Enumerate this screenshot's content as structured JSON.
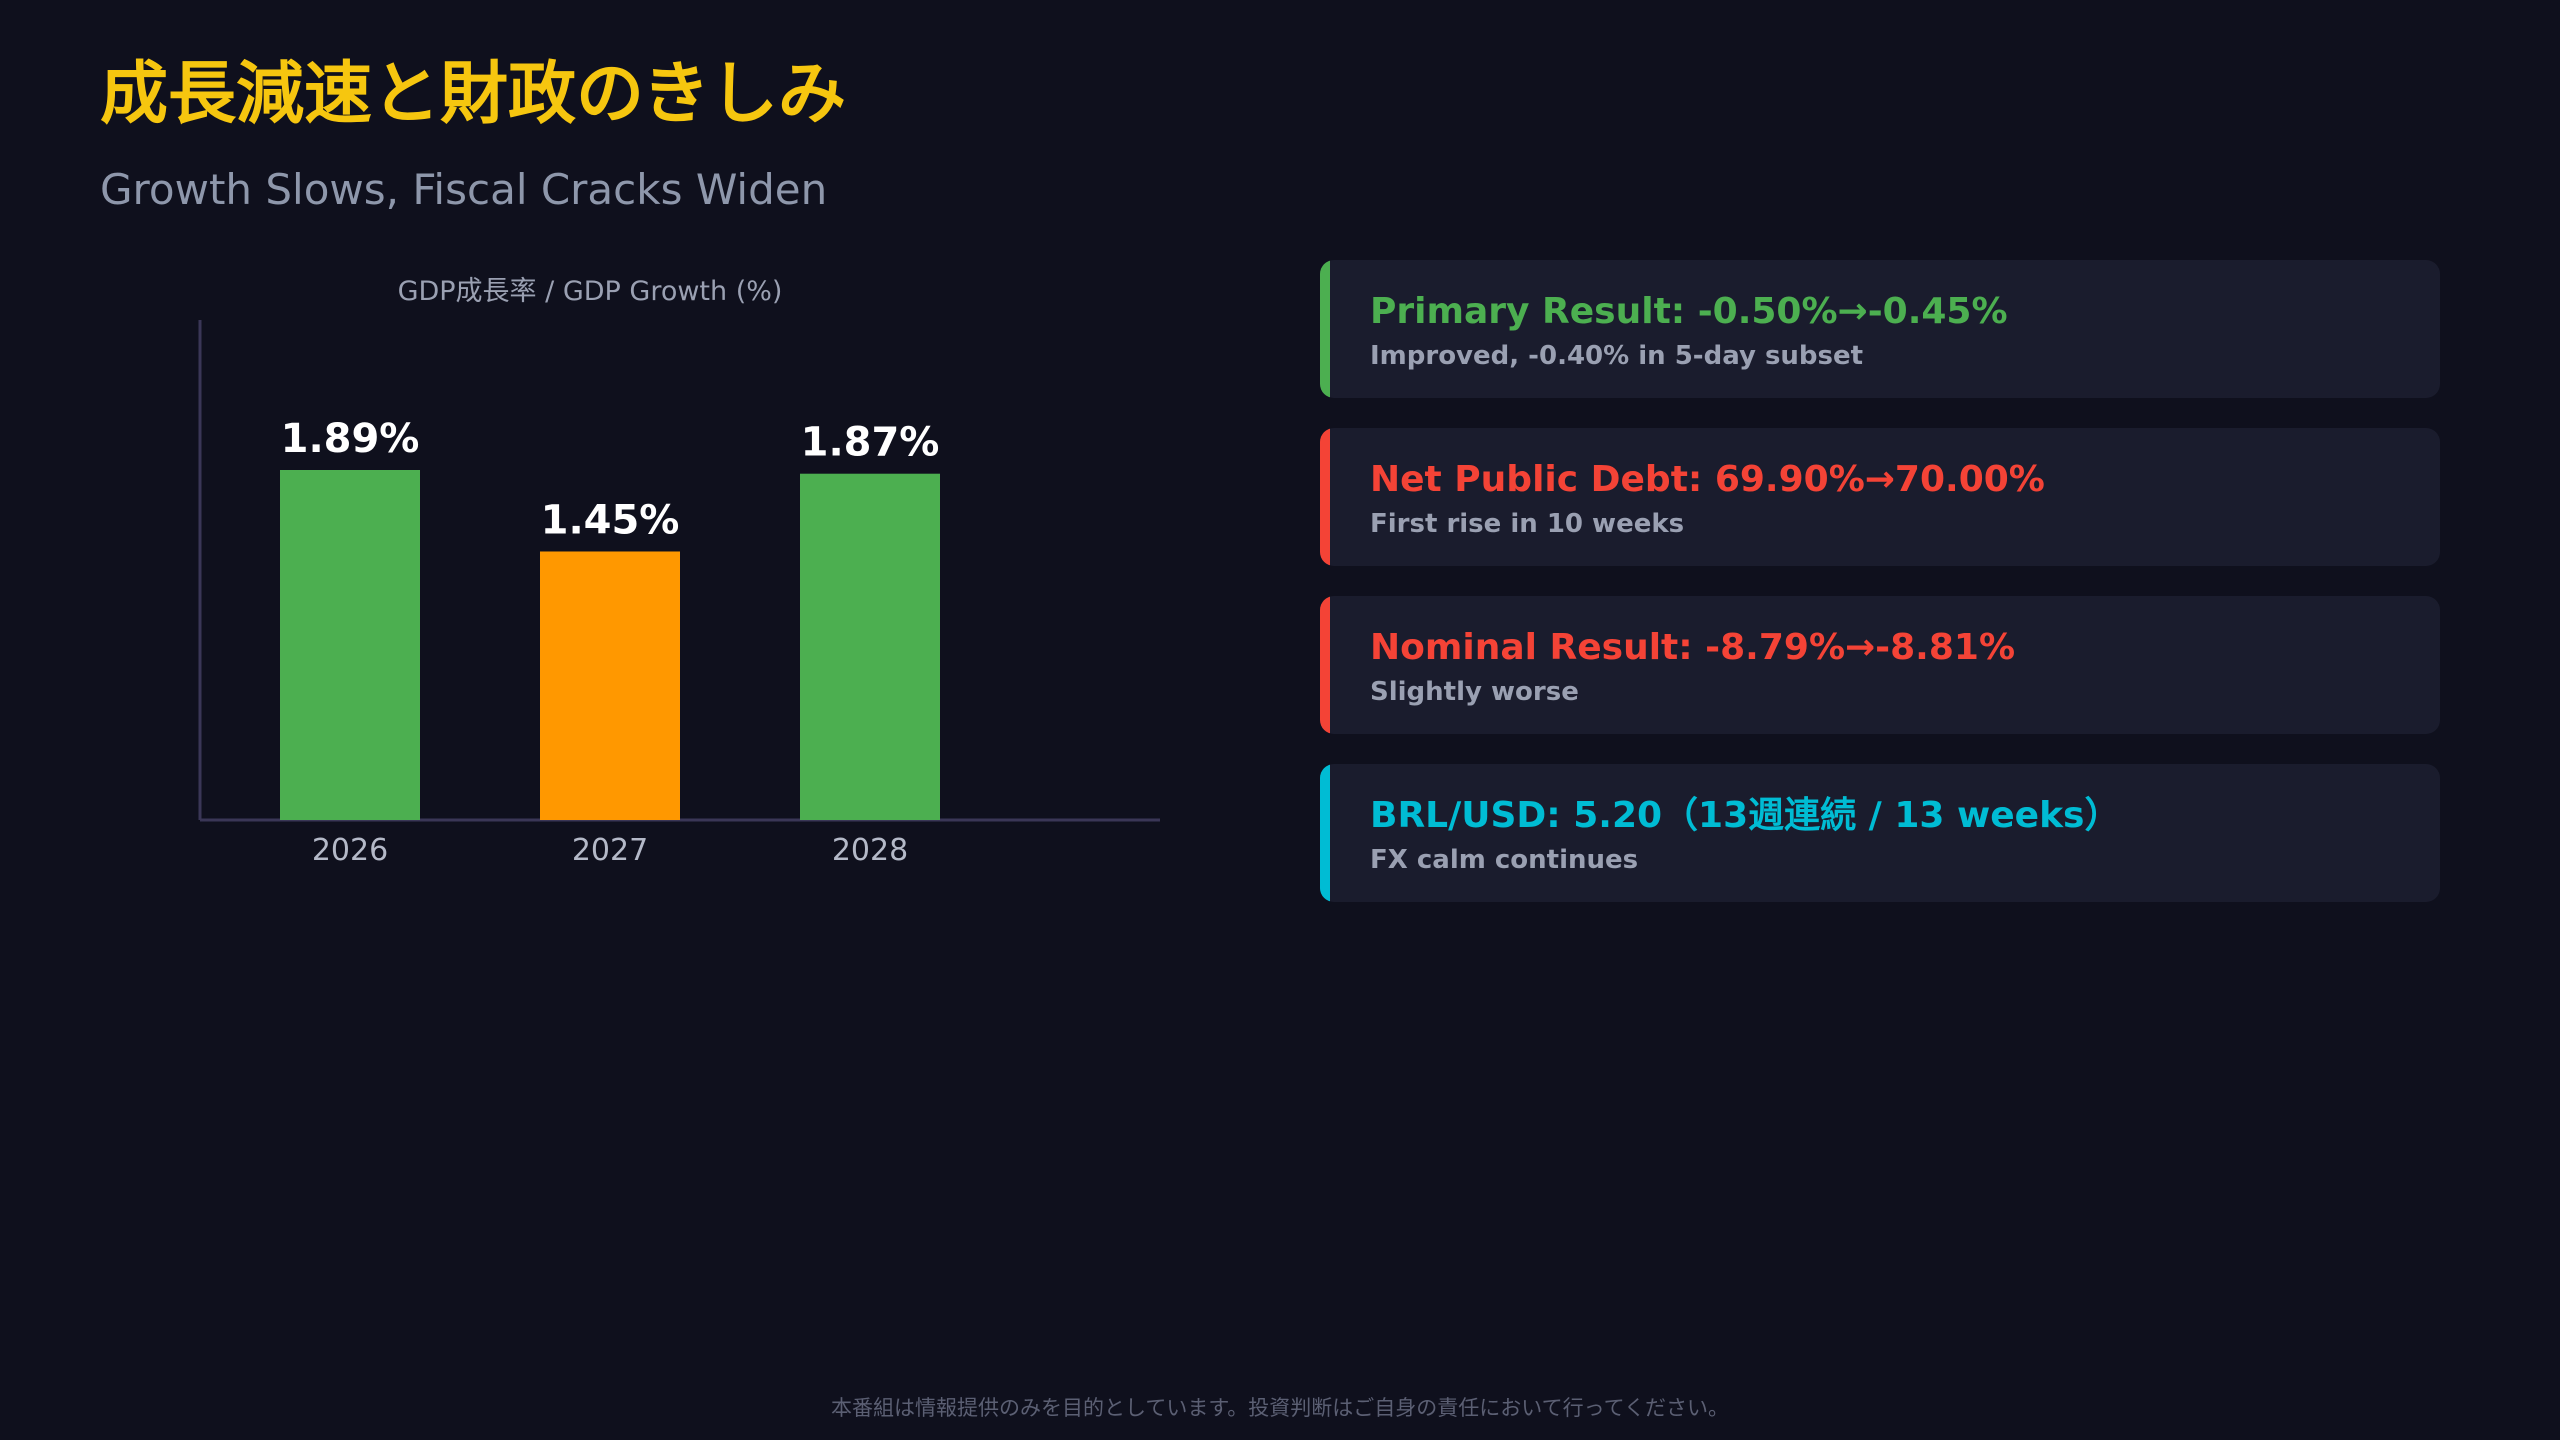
{
  "header": {
    "title": "成長減速と財政のきしみ",
    "subtitle": "Growth Slows, Fiscal Cracks Widen"
  },
  "chart_data": {
    "type": "bar",
    "title": "GDP成長率 / GDP Growth (%)",
    "categories": [
      "2026",
      "2027",
      "2028"
    ],
    "values": [
      1.89,
      1.45,
      1.87
    ],
    "value_labels": [
      "1.89%",
      "1.45%",
      "1.87%"
    ],
    "bar_colors": [
      "#4caf50",
      "#ff9800",
      "#4caf50"
    ],
    "ylim": [
      0,
      2.7
    ],
    "grid": false,
    "legend": "none"
  },
  "cards": [
    {
      "heading": "Primary Result: -0.50%→-0.45%",
      "detail": "Improved, -0.40% in 5-day subset",
      "color": "#4caf50"
    },
    {
      "heading": "Net Public Debt: 69.90%→70.00%",
      "detail": "First rise in 10 weeks",
      "color": "#f44336"
    },
    {
      "heading": "Nominal Result: -8.79%→-8.81%",
      "detail": "Slightly worse",
      "color": "#f44336"
    },
    {
      "heading": "BRL/USD: 5.20（13週連続 / 13 weeks）",
      "detail": "FX calm continues",
      "color": "#00bcd4"
    }
  ],
  "footer": {
    "disclaimer": "本番組は情報提供のみを目的としています。投資判断はご自身の責任において行ってください。"
  },
  "colors": {
    "background": "#0f101d",
    "title": "#f6c60f",
    "card_background": "#1a1c2d"
  }
}
